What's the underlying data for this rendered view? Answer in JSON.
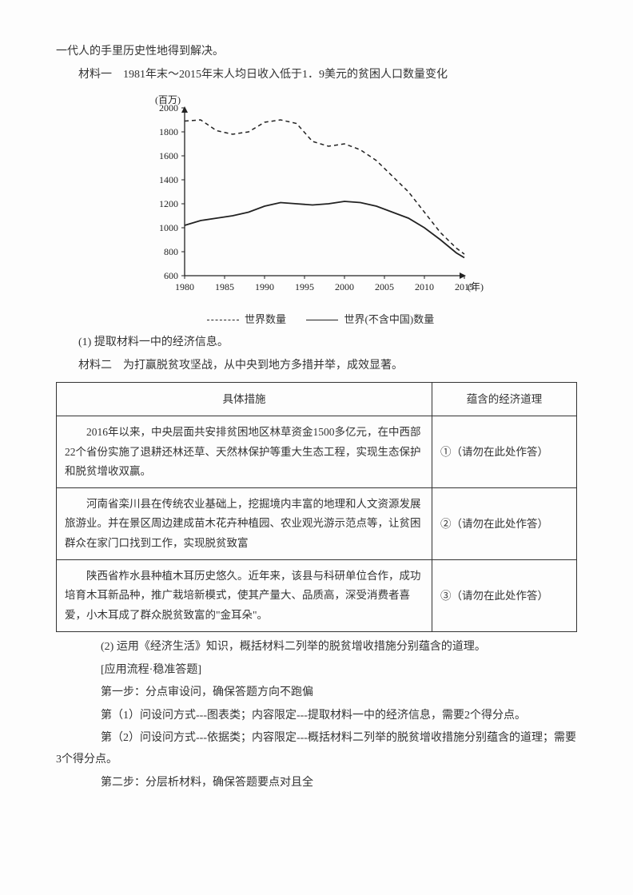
{
  "intro_line": "一代人的手里历史性地得到解决。",
  "material1_title": "材料一　1981年末～2015年末人均日收入低于1．9美元的贫困人口数量变化",
  "chart": {
    "type": "line",
    "y_unit_label": "(百万)",
    "x_unit_label": "(年)",
    "xlim": [
      1980,
      2015
    ],
    "ylim": [
      600,
      2000
    ],
    "xticks": [
      1980,
      1985,
      1990,
      1995,
      2000,
      2005,
      2010,
      2015
    ],
    "yticks": [
      600,
      800,
      1000,
      1200,
      1400,
      1600,
      1800,
      2000
    ],
    "series": [
      {
        "name": "世界数量",
        "style": "dashed",
        "color": "#222222",
        "width": 1.5,
        "points": [
          [
            1980,
            1890
          ],
          [
            1982,
            1900
          ],
          [
            1984,
            1810
          ],
          [
            1986,
            1780
          ],
          [
            1988,
            1800
          ],
          [
            1990,
            1880
          ],
          [
            1992,
            1900
          ],
          [
            1994,
            1870
          ],
          [
            1996,
            1720
          ],
          [
            1998,
            1680
          ],
          [
            2000,
            1700
          ],
          [
            2002,
            1650
          ],
          [
            2004,
            1560
          ],
          [
            2006,
            1430
          ],
          [
            2008,
            1300
          ],
          [
            2010,
            1130
          ],
          [
            2012,
            960
          ],
          [
            2014,
            830
          ],
          [
            2015,
            780
          ]
        ]
      },
      {
        "name": "世界(不含中国)数量",
        "style": "solid",
        "color": "#222222",
        "width": 1.8,
        "points": [
          [
            1980,
            1020
          ],
          [
            1982,
            1060
          ],
          [
            1984,
            1080
          ],
          [
            1986,
            1100
          ],
          [
            1988,
            1130
          ],
          [
            1990,
            1180
          ],
          [
            1992,
            1210
          ],
          [
            1994,
            1200
          ],
          [
            1996,
            1190
          ],
          [
            1998,
            1200
          ],
          [
            2000,
            1220
          ],
          [
            2002,
            1210
          ],
          [
            2004,
            1180
          ],
          [
            2006,
            1130
          ],
          [
            2008,
            1080
          ],
          [
            2010,
            1000
          ],
          [
            2012,
            900
          ],
          [
            2014,
            790
          ],
          [
            2015,
            750
          ]
        ]
      }
    ],
    "background_color": "#fdfdfd",
    "axis_color": "#222222",
    "label_fontsize": 12
  },
  "legend": {
    "series1": "世界数量",
    "series2": "世界(不含中国)数量"
  },
  "q1": "(1) 提取材料一中的经济信息。",
  "material2_title": "材料二　为打赢脱贫攻坚战，从中央到地方多措并举，成效显著。",
  "table": {
    "header_left": "具体措施",
    "header_right": "蕴含的经济道理",
    "rows": [
      {
        "left": "2016年以来，中央层面共安排贫困地区林草资金1500多亿元，在中西部22个省份实施了退耕还林还草、天然林保护等重大生态工程，实现生态保护和脱贫增收双赢。",
        "right": "①（请勿在此处作答）"
      },
      {
        "left": "河南省栾川县在传统农业基础上，挖掘境内丰富的地理和人文资源发展旅游业。并在景区周边建成苗木花卉种植园、农业观光游示范点等，让贫困群众在家门口找到工作，实现脱贫致富",
        "right": "②（请勿在此处作答）"
      },
      {
        "left": "陕西省柞水县种植木耳历史悠久。近年来，该县与科研单位合作，成功培育木耳新品种，推广栽培新模式，使其产量大、品质高，深受消费者喜爱，小木耳成了群众脱贫致富的\"金耳朵\"。",
        "right": "③（请勿在此处作答）"
      }
    ]
  },
  "q2": "(2) 运用《经济生活》知识，概括材料二列举的脱贫增收措施分别蕴含的道理。",
  "flow_title": "[应用流程·稳准答题]",
  "step1": "第一步：分点审设问，确保答题方向不跑偏",
  "step1_sub1": "第（1）问设问方式---图表类；内容限定---提取材料一中的经济信息，需要2个得分点。",
  "step1_sub2": "第（2）问设问方式---依据类；内容限定---概括材料二列举的脱贫增收措施分别蕴含的道理；需要3个得分点。",
  "step2": "第二步：分层析材料，确保答题要点对且全"
}
